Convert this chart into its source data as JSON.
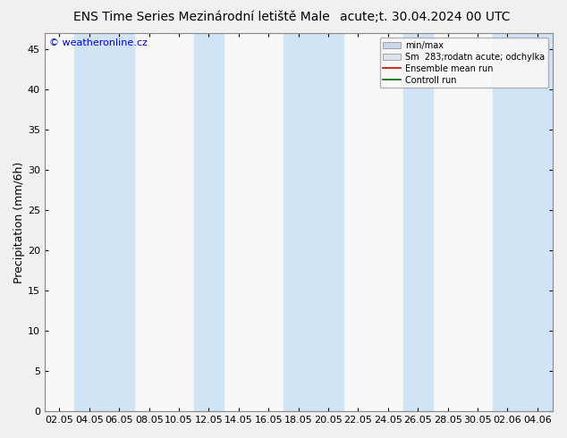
{
  "title_left": "ENS Time Series Mezinárodní letiště Male",
  "title_right": "acute;t. 30.04.2024 00 UTC",
  "ylabel": "Precipitation (mm/6h)",
  "watermark": "© weatheronline.cz",
  "ylim": [
    0,
    47
  ],
  "yticks": [
    0,
    5,
    10,
    15,
    20,
    25,
    30,
    35,
    40,
    45
  ],
  "xtick_labels": [
    "02.05",
    "04.05",
    "06.05",
    "08.05",
    "10.05",
    "12.05",
    "14.05",
    "16.05",
    "18.05",
    "20.05",
    "22.05",
    "24.05",
    "26.05",
    "28.05",
    "30.05",
    "02.06",
    "04.06"
  ],
  "n_ticks": 17,
  "shaded_band_color": "#d0e4f5",
  "background_color": "#f0f0f0",
  "plot_bg_color": "#f8f8f8",
  "legend_entries": [
    {
      "label": "min/max",
      "color": "#b8cfe0",
      "type": "fill"
    },
    {
      "label": "Sm  283;rodatn acute; odchylka",
      "color": "#ccdaeb",
      "type": "fill"
    },
    {
      "label": "Ensemble mean run",
      "color": "#cc0000",
      "type": "line"
    },
    {
      "label": "Controll run",
      "color": "#006600",
      "type": "line"
    }
  ],
  "shaded_columns_x": [
    1,
    2,
    5,
    8,
    9,
    12,
    15,
    16
  ],
  "font_size_title": 10,
  "font_size_axis": 9,
  "font_size_ticks": 8,
  "font_size_legend": 7,
  "font_size_watermark": 8
}
